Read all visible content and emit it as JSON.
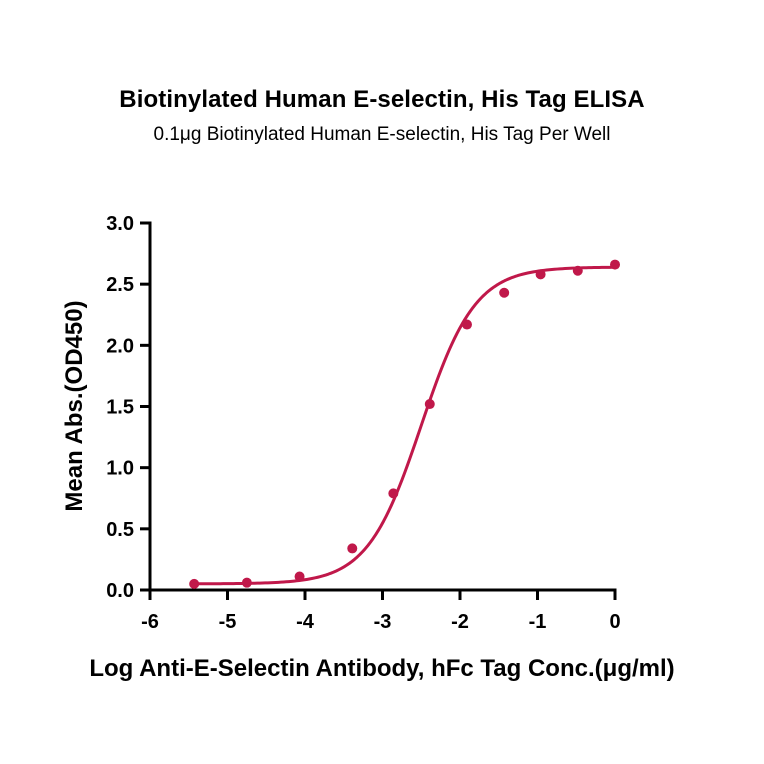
{
  "chart_data": {
    "type": "scatter",
    "title": "Biotinylated Human E-selectin, His Tag ELISA",
    "subtitle": "0.1μg Biotinylated Human E-selectin, His Tag Per Well",
    "xlabel": "Log Anti-E-Selectin Antibody, hFc Tag Conc.(μg/ml)",
    "ylabel": "Mean Abs.(OD450)",
    "xlim": [
      -6,
      0
    ],
    "ylim": [
      0,
      3.0
    ],
    "x_ticks": [
      "-6",
      "-5",
      "-4",
      "-3",
      "-2",
      "-1",
      "0"
    ],
    "y_ticks": [
      "0.0",
      "0.5",
      "1.0",
      "1.5",
      "2.0",
      "2.5",
      "3.0"
    ],
    "grid": false,
    "series": [
      {
        "color": "#C0184A",
        "points": [
          {
            "x": -5.43,
            "y": 0.05
          },
          {
            "x": -4.75,
            "y": 0.06
          },
          {
            "x": -4.07,
            "y": 0.11
          },
          {
            "x": -3.39,
            "y": 0.34
          },
          {
            "x": -2.86,
            "y": 0.79
          },
          {
            "x": -2.39,
            "y": 1.52
          },
          {
            "x": -1.91,
            "y": 2.17
          },
          {
            "x": -1.43,
            "y": 2.43
          },
          {
            "x": -0.96,
            "y": 2.58
          },
          {
            "x": -0.48,
            "y": 2.61
          },
          {
            "x": 0.0,
            "y": 2.66
          }
        ],
        "fit": {
          "type": "4PL",
          "bottom": 0.05,
          "top": 2.64,
          "log_ec50": -2.5,
          "hill_slope": 1.25,
          "x_range": [
            -5.43,
            0.0
          ]
        }
      }
    ]
  }
}
